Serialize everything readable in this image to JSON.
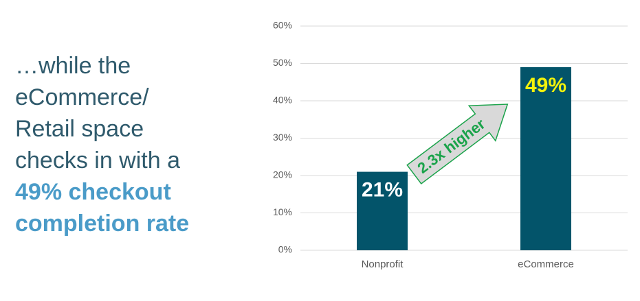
{
  "side_text": {
    "lines": [
      "…while the",
      "eCommerce/",
      "Retail space",
      "checks in with a"
    ],
    "highlight_lines": [
      "49% checkout",
      "completion rate"
    ]
  },
  "chart_data": {
    "type": "bar",
    "categories": [
      "Nonprofit",
      "eCommerce"
    ],
    "values": [
      21,
      49
    ],
    "value_labels": [
      "21%",
      "49%"
    ],
    "value_label_colors": [
      "#ffffff",
      "#f2f20c"
    ],
    "color": "#03546a",
    "ylim": [
      0,
      60
    ],
    "yticks": [
      {
        "value": 0,
        "label": "0%"
      },
      {
        "value": 10,
        "label": "10%"
      },
      {
        "value": 20,
        "label": "20%"
      },
      {
        "value": 30,
        "label": "30%"
      },
      {
        "value": 40,
        "label": "40%"
      },
      {
        "value": 50,
        "label": "50%"
      },
      {
        "value": 60,
        "label": "60%"
      }
    ],
    "grid": true,
    "annotation": "2.3x higher"
  }
}
